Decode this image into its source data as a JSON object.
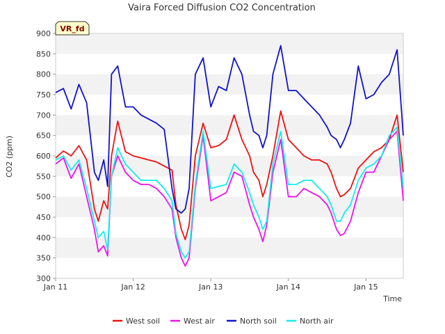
{
  "chart_data": {
    "type": "line",
    "title": "Vaira Forced Diffusion CO2 Concentration",
    "xlabel": "Time",
    "ylabel": "CO2 (ppm)",
    "site_badge": "VR_fd",
    "ylim": [
      300,
      900
    ],
    "xlim": [
      0,
      4.48
    ],
    "yticks": [
      300,
      350,
      400,
      450,
      500,
      550,
      600,
      650,
      700,
      750,
      800,
      850,
      900
    ],
    "xticks": [
      0,
      1,
      2,
      3,
      4
    ],
    "xtick_labels": [
      "Jan 11",
      "Jan 12",
      "Jan 13",
      "Jan 14",
      "Jan 15"
    ],
    "grid": "alternating horizontal bands",
    "legend_position": "bottom",
    "x": [
      0.0,
      0.1,
      0.2,
      0.3,
      0.4,
      0.5,
      0.55,
      0.62,
      0.67,
      0.72,
      0.8,
      0.9,
      1.0,
      1.1,
      1.2,
      1.3,
      1.4,
      1.5,
      1.55,
      1.62,
      1.67,
      1.72,
      1.8,
      1.9,
      2.0,
      2.1,
      2.2,
      2.3,
      2.4,
      2.5,
      2.55,
      2.62,
      2.67,
      2.72,
      2.8,
      2.9,
      3.0,
      3.1,
      3.2,
      3.3,
      3.4,
      3.5,
      3.55,
      3.62,
      3.67,
      3.72,
      3.8,
      3.9,
      4.0,
      4.1,
      4.2,
      4.3,
      4.4,
      4.48
    ],
    "series": [
      {
        "name": "West soil",
        "color": "#ee1111",
        "values": [
          595,
          612,
          600,
          625,
          590,
          470,
          440,
          490,
          470,
          600,
          685,
          610,
          600,
          595,
          590,
          585,
          575,
          565,
          480,
          420,
          395,
          430,
          600,
          680,
          620,
          625,
          640,
          700,
          640,
          600,
          560,
          540,
          500,
          530,
          600,
          710,
          640,
          620,
          600,
          590,
          590,
          580,
          560,
          520,
          500,
          505,
          520,
          570,
          590,
          610,
          620,
          640,
          700,
          560
        ]
      },
      {
        "name": "West air",
        "color": "#ee11ee",
        "values": [
          580,
          595,
          545,
          580,
          500,
          420,
          365,
          380,
          355,
          550,
          600,
          560,
          540,
          530,
          530,
          520,
          500,
          470,
          400,
          350,
          330,
          350,
          520,
          650,
          490,
          500,
          510,
          560,
          550,
          480,
          450,
          420,
          390,
          430,
          560,
          640,
          500,
          500,
          520,
          510,
          500,
          480,
          460,
          420,
          405,
          410,
          440,
          510,
          560,
          560,
          600,
          640,
          660,
          490
        ]
      },
      {
        "name": "North soil",
        "color": "#1111cc",
        "values": [
          755,
          765,
          715,
          775,
          730,
          560,
          540,
          590,
          525,
          800,
          820,
          720,
          720,
          700,
          690,
          680,
          665,
          520,
          470,
          460,
          470,
          520,
          800,
          840,
          720,
          770,
          760,
          840,
          800,
          700,
          660,
          650,
          620,
          650,
          800,
          870,
          760,
          760,
          740,
          720,
          700,
          670,
          650,
          640,
          620,
          640,
          680,
          820,
          740,
          750,
          780,
          800,
          860,
          650
        ]
      },
      {
        "name": "North air",
        "color": "#11eeee",
        "values": [
          590,
          600,
          565,
          590,
          520,
          440,
          400,
          415,
          370,
          550,
          620,
          580,
          560,
          540,
          540,
          540,
          520,
          490,
          410,
          365,
          350,
          365,
          530,
          660,
          520,
          525,
          530,
          580,
          560,
          510,
          480,
          450,
          420,
          440,
          580,
          660,
          530,
          530,
          540,
          540,
          520,
          500,
          480,
          440,
          440,
          460,
          480,
          540,
          570,
          580,
          600,
          650,
          670,
          520
        ]
      }
    ]
  }
}
